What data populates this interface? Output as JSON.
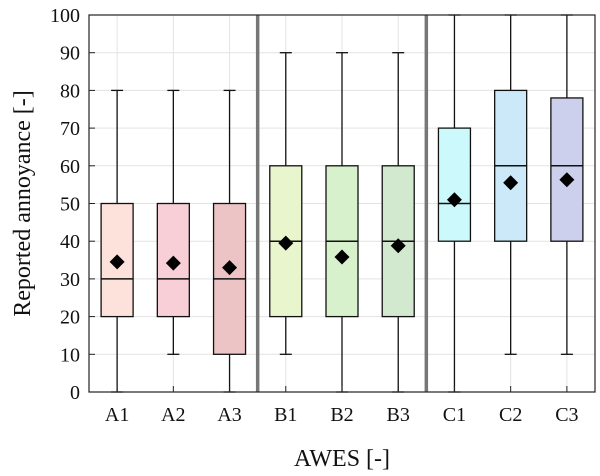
{
  "chart_data": {
    "type": "box",
    "title": "",
    "xlabel": "AWES [-]",
    "ylabel": "Reported annoyance [-]",
    "ylim": [
      0,
      100
    ],
    "yticks": [
      0,
      10,
      20,
      30,
      40,
      50,
      60,
      70,
      80,
      90,
      100
    ],
    "grid": true,
    "group_separators_after": [
      "A3",
      "B3"
    ],
    "categories": [
      "A1",
      "A2",
      "A3",
      "B1",
      "B2",
      "B3",
      "C1",
      "C2",
      "C3"
    ],
    "boxes": [
      {
        "label": "A1",
        "min": 0,
        "q1": 20,
        "median": 30,
        "q3": 50,
        "max": 80,
        "mean": 34.5,
        "color": "#fde2dc"
      },
      {
        "label": "A2",
        "min": 10,
        "q1": 20,
        "median": 30,
        "q3": 50,
        "max": 80,
        "mean": 34.2,
        "color": "#f8cfd6"
      },
      {
        "label": "A3",
        "min": 0,
        "q1": 10,
        "median": 30,
        "q3": 50,
        "max": 80,
        "mean": 33.0,
        "color": "#edc4c6"
      },
      {
        "label": "B1",
        "min": 10,
        "q1": 20,
        "median": 40,
        "q3": 60,
        "max": 90,
        "mean": 39.5,
        "color": "#e9f5cc"
      },
      {
        "label": "B2",
        "min": 0,
        "q1": 20,
        "median": 40,
        "q3": 60,
        "max": 90,
        "mean": 35.8,
        "color": "#d6f1cb"
      },
      {
        "label": "B3",
        "min": 0,
        "q1": 20,
        "median": 40,
        "q3": 60,
        "max": 90,
        "mean": 38.8,
        "color": "#d2e8cf"
      },
      {
        "label": "C1",
        "min": 0,
        "q1": 40,
        "median": 50,
        "q3": 70,
        "max": 100,
        "mean": 51.0,
        "color": "#ccfafc"
      },
      {
        "label": "C2",
        "min": 10,
        "q1": 40,
        "median": 60,
        "q3": 80,
        "max": 100,
        "mean": 55.5,
        "color": "#cbe9f8"
      },
      {
        "label": "C3",
        "min": 10,
        "q1": 40,
        "median": 60,
        "q3": 78,
        "max": 100,
        "mean": 56.3,
        "color": "#ccd0ec"
      }
    ]
  }
}
